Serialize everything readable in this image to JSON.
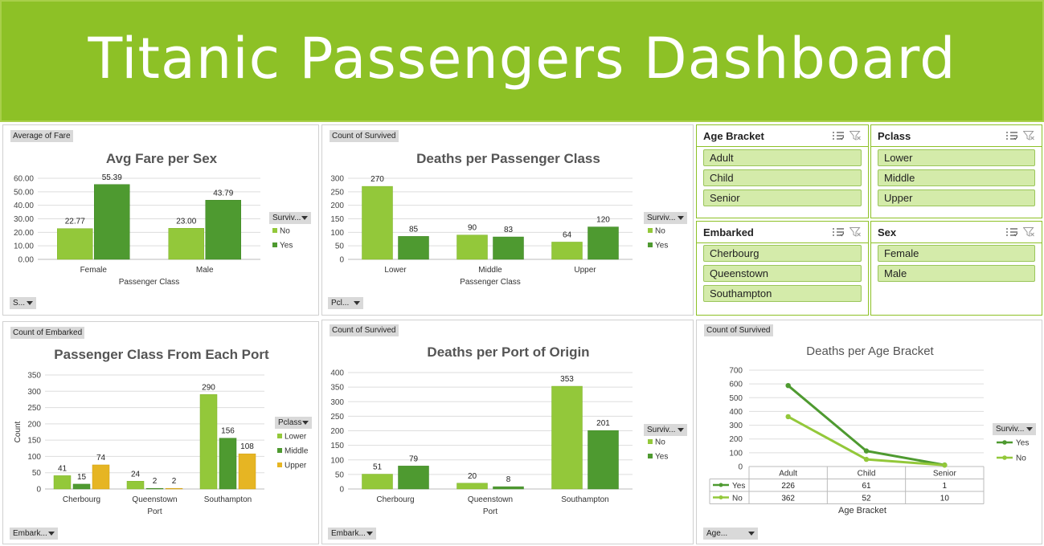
{
  "dashboard": {
    "title": "Titanic Passengers Dashboard",
    "accent": "#8dc126"
  },
  "charts": {
    "fare_sex": {
      "field_button": "Average of Fare",
      "filter_button": "S...",
      "legend_button": "Surviv...",
      "legend": [
        "No",
        "Yes"
      ],
      "yticks": [
        "60.00",
        "50.00",
        "40.00",
        "30.00",
        "20.00",
        "10.00",
        "0.00"
      ]
    },
    "deaths_class": {
      "field_button": "Count of Survived",
      "filter_button": "Pcl...",
      "legend_button": "Surviv...",
      "legend": [
        "No",
        "Yes"
      ]
    },
    "class_port": {
      "field_button": "Count of Embarked",
      "filter_button": "Embark...",
      "legend_button": "Pclass",
      "legend": [
        "Lower",
        "Middle",
        "Upper"
      ]
    },
    "deaths_port": {
      "field_button": "Count of Survived",
      "filter_button": "Embark...",
      "legend_button": "Surviv...",
      "legend": [
        "No",
        "Yes"
      ]
    },
    "deaths_age": {
      "field_button": "Count of Survived",
      "filter_button": "Age...",
      "legend_button": "Surviv...",
      "legend": [
        "Yes",
        "No"
      ]
    }
  },
  "slicers": {
    "age": {
      "title": "Age Bracket",
      "items": [
        "Adult",
        "Child",
        "Senior"
      ]
    },
    "pclass": {
      "title": "Pclass",
      "items": [
        "Lower",
        "Middle",
        "Upper"
      ]
    },
    "embarked": {
      "title": "Embarked",
      "items": [
        "Cherbourg",
        "Queenstown",
        "Southampton"
      ]
    },
    "sex": {
      "title": "Sex",
      "items": [
        "Female",
        "Male"
      ]
    }
  },
  "chart_data": [
    {
      "type": "bar",
      "title": "Avg Fare per Sex",
      "xlabel": "Passenger Class",
      "ylabel": "",
      "categories": [
        "Female",
        "Male"
      ],
      "series": [
        {
          "name": "No",
          "values": [
            22.77,
            23.0
          ],
          "labels": [
            "22.77",
            "23.00"
          ]
        },
        {
          "name": "Yes",
          "values": [
            55.39,
            43.79
          ],
          "labels": [
            "55.39",
            "43.79"
          ]
        }
      ],
      "ylim": [
        0,
        60
      ],
      "yticks": [
        0,
        10,
        20,
        30,
        40,
        50,
        60
      ],
      "grid": true,
      "legend": "right"
    },
    {
      "type": "bar",
      "title": "Deaths per Passenger Class",
      "xlabel": "Passenger Class",
      "ylabel": "",
      "categories": [
        "Lower",
        "Middle",
        "Upper"
      ],
      "series": [
        {
          "name": "No",
          "values": [
            270,
            90,
            64
          ]
        },
        {
          "name": "Yes",
          "values": [
            85,
            83,
            120
          ]
        }
      ],
      "ylim": [
        0,
        300
      ],
      "yticks": [
        0,
        50,
        100,
        150,
        200,
        250,
        300
      ],
      "grid": true,
      "legend": "right"
    },
    {
      "type": "bar",
      "title": "Passenger Class From Each Port",
      "xlabel": "Port",
      "ylabel": "Count",
      "categories": [
        "Cherbourg",
        "Queenstown",
        "Southampton"
      ],
      "series": [
        {
          "name": "Lower",
          "values": [
            41,
            24,
            290
          ]
        },
        {
          "name": "Middle",
          "values": [
            15,
            2,
            156
          ]
        },
        {
          "name": "Upper",
          "values": [
            74,
            2,
            108
          ]
        }
      ],
      "ylim": [
        0,
        350
      ],
      "yticks": [
        0,
        50,
        100,
        150,
        200,
        250,
        300,
        350
      ],
      "grid": true,
      "legend": "right"
    },
    {
      "type": "bar",
      "title": "Deaths per Port of Origin",
      "xlabel": "Port",
      "ylabel": "",
      "categories": [
        "Cherbourg",
        "Queenstown",
        "Southampton"
      ],
      "series": [
        {
          "name": "No",
          "values": [
            51,
            20,
            353
          ]
        },
        {
          "name": "Yes",
          "values": [
            79,
            8,
            201
          ]
        }
      ],
      "ylim": [
        0,
        400
      ],
      "yticks": [
        0,
        50,
        100,
        150,
        200,
        250,
        300,
        350,
        400
      ],
      "grid": true,
      "legend": "right"
    },
    {
      "type": "line",
      "title": "Deaths per Age Bracket",
      "xlabel": "Age Bracket",
      "ylabel": "",
      "categories": [
        "Adult",
        "Child",
        "Senior"
      ],
      "series": [
        {
          "name": "Yes",
          "values": [
            226,
            61,
            1
          ],
          "stacked_total": [
            588,
            113,
            11
          ]
        },
        {
          "name": "No",
          "values": [
            362,
            52,
            10
          ]
        }
      ],
      "ylim": [
        0,
        700
      ],
      "yticks": [
        0,
        100,
        200,
        300,
        400,
        500,
        600,
        700
      ],
      "grid": true,
      "legend": "right",
      "data_table": true
    }
  ]
}
